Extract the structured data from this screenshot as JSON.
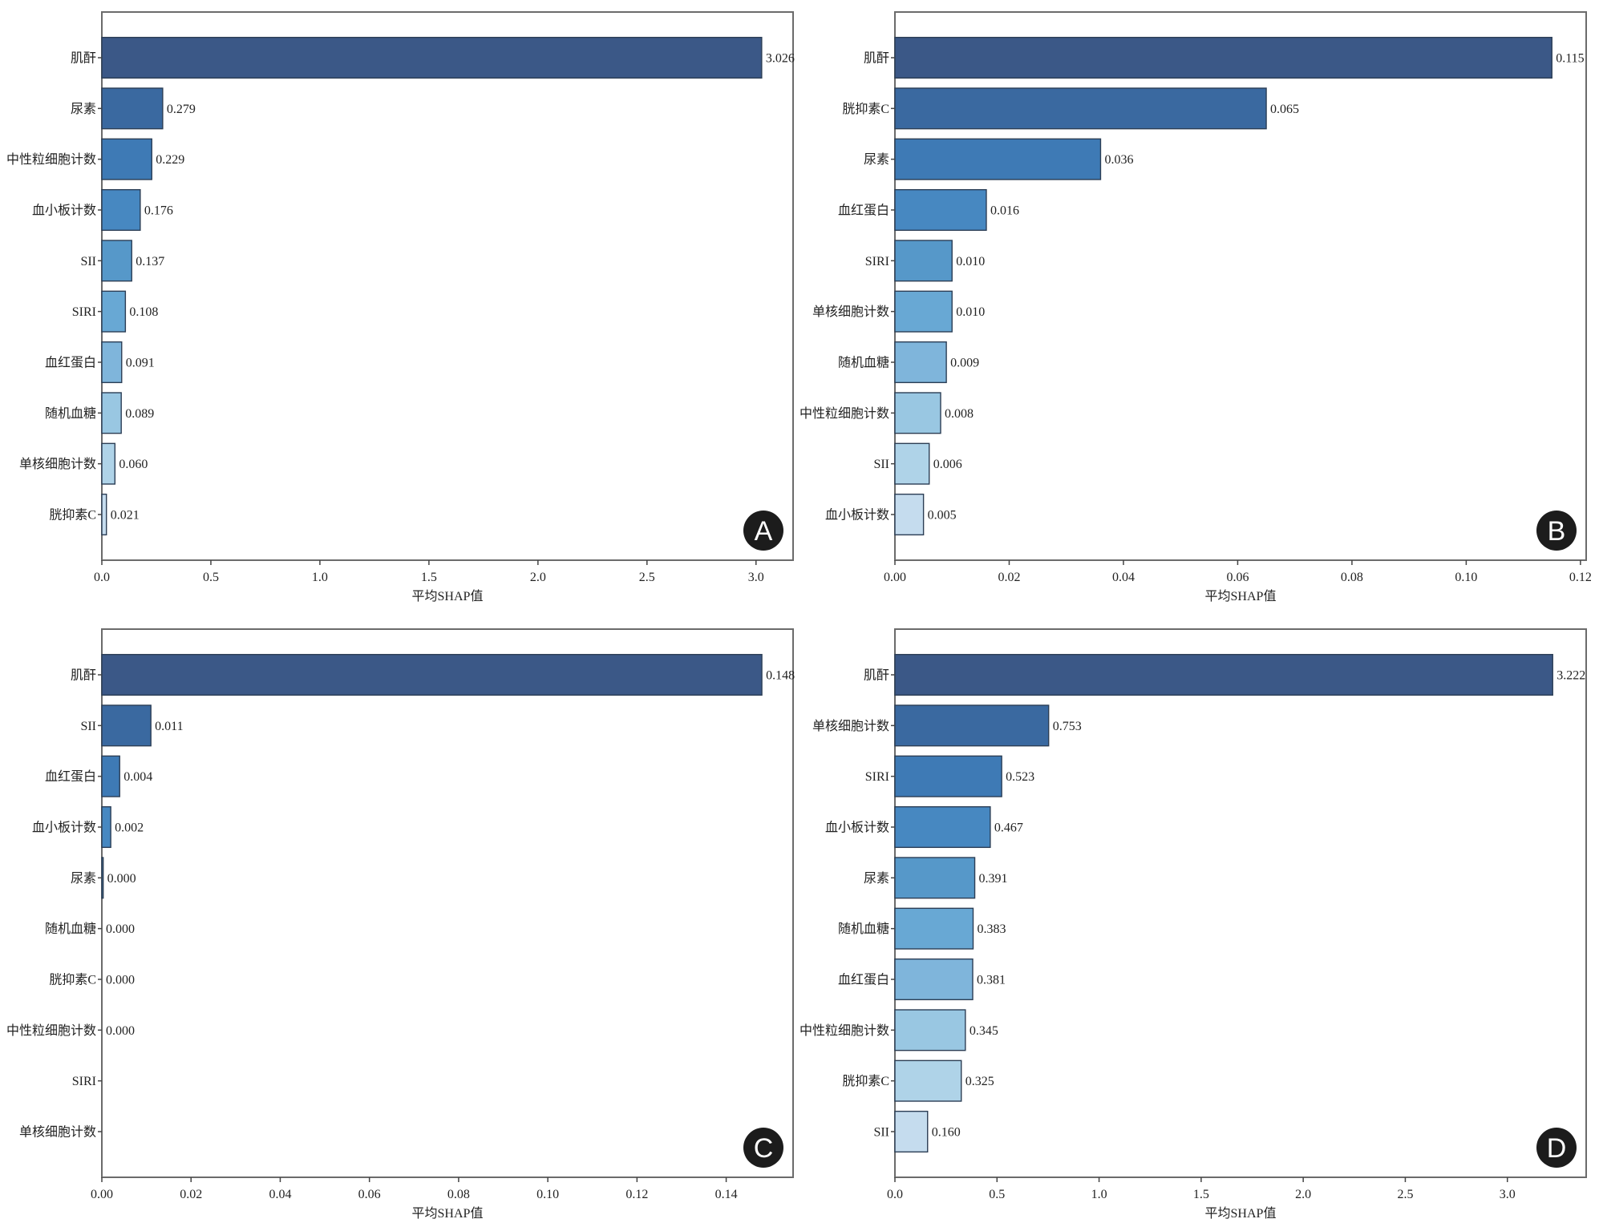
{
  "figure": {
    "panel_count": 4
  },
  "chart_data": [
    {
      "panel": "A",
      "type": "bar",
      "orientation": "horizontal",
      "title": "",
      "xlabel": "平均SHAP值",
      "ylabel": "",
      "xlim": [
        0,
        3.17
      ],
      "xticks": [
        0.0,
        0.5,
        1.0,
        1.5,
        2.0,
        2.5,
        3.0
      ],
      "xtick_labels": [
        "0.0",
        "0.5",
        "1.0",
        "1.5",
        "2.0",
        "2.5",
        "3.0"
      ],
      "grid": false,
      "categories": [
        "肌酐",
        "尿素",
        "中性粒细胞计数",
        "血小板计数",
        "SII",
        "SIRI",
        "血红蛋白",
        "随机血糖",
        "单核细胞计数",
        "胱抑素C"
      ],
      "values": [
        3.026,
        0.279,
        0.229,
        0.176,
        0.137,
        0.108,
        0.091,
        0.089,
        0.06,
        0.021
      ],
      "value_labels": [
        "3.026",
        "0.279",
        "0.229",
        "0.176",
        "0.137",
        "0.108",
        "0.091",
        "0.089",
        "0.060",
        "0.021"
      ],
      "colors": [
        "#3b5887",
        "#3a69a0",
        "#3e7ab5",
        "#4788c1",
        "#5698c9",
        "#68a8d4",
        "#7fb5db",
        "#99c7e2",
        "#afd3e8",
        "#c5dcee"
      ],
      "badge": "A"
    },
    {
      "panel": "B",
      "type": "bar",
      "orientation": "horizontal",
      "title": "",
      "xlabel": "平均SHAP值",
      "ylabel": "",
      "xlim": [
        0,
        0.121
      ],
      "xticks": [
        0.0,
        0.02,
        0.04,
        0.06,
        0.08,
        0.1,
        0.12
      ],
      "xtick_labels": [
        "0.00",
        "0.02",
        "0.04",
        "0.06",
        "0.08",
        "0.10",
        "0.12"
      ],
      "grid": false,
      "categories": [
        "肌酐",
        "胱抑素C",
        "尿素",
        "血红蛋白",
        "SIRI",
        "单核细胞计数",
        "随机血糖",
        "中性粒细胞计数",
        "SII",
        "血小板计数"
      ],
      "values": [
        0.115,
        0.065,
        0.036,
        0.016,
        0.01,
        0.01,
        0.009,
        0.008,
        0.006,
        0.005
      ],
      "value_labels": [
        "0.115",
        "0.065",
        "0.036",
        "0.016",
        "0.010",
        "0.010",
        "0.009",
        "0.008",
        "0.006",
        "0.005"
      ],
      "colors": [
        "#3b5887",
        "#3a69a0",
        "#3e7ab5",
        "#4788c1",
        "#5698c9",
        "#68a8d4",
        "#7fb5db",
        "#99c7e2",
        "#afd3e8",
        "#c5dcee"
      ],
      "badge": "B"
    },
    {
      "panel": "C",
      "type": "bar",
      "orientation": "horizontal",
      "title": "",
      "xlabel": "平均SHAP值",
      "ylabel": "",
      "xlim": [
        0,
        0.155
      ],
      "xticks": [
        0.0,
        0.02,
        0.04,
        0.06,
        0.08,
        0.1,
        0.12,
        0.14
      ],
      "xtick_labels": [
        "0.00",
        "0.02",
        "0.04",
        "0.06",
        "0.08",
        "0.10",
        "0.12",
        "0.14"
      ],
      "grid": false,
      "categories": [
        "肌酐",
        "SII",
        "血红蛋白",
        "血小板计数",
        "尿素",
        "随机血糖",
        "胱抑素C",
        "中性粒细胞计数",
        "SIRI",
        "单核细胞计数"
      ],
      "values": [
        0.148,
        0.011,
        0.004,
        0.002,
        0.0003,
        0.0,
        0.0,
        0.0,
        0.0,
        0.0
      ],
      "value_labels": [
        "0.148",
        "0.011",
        "0.004",
        "0.002",
        "0.000",
        "0.000",
        "0.000",
        "0.000",
        "",
        ""
      ],
      "colors": [
        "#3b5887",
        "#3a69a0",
        "#3e7ab5",
        "#4788c1",
        "#5698c9",
        "#68a8d4",
        "#7fb5db",
        "#99c7e2",
        "#afd3e8",
        "#c5dcee"
      ],
      "badge": "C"
    },
    {
      "panel": "D",
      "type": "bar",
      "orientation": "horizontal",
      "title": "",
      "xlabel": "平均SHAP值",
      "ylabel": "",
      "xlim": [
        0,
        3.386
      ],
      "xticks": [
        0.0,
        0.5,
        1.0,
        1.5,
        2.0,
        2.5,
        3.0
      ],
      "xtick_labels": [
        "0.0",
        "0.5",
        "1.0",
        "1.5",
        "2.0",
        "2.5",
        "3.0"
      ],
      "grid": false,
      "categories": [
        "肌酐",
        "单核细胞计数",
        "SIRI",
        "血小板计数",
        "尿素",
        "随机血糖",
        "血红蛋白",
        "中性粒细胞计数",
        "胱抑素C",
        "SII"
      ],
      "values": [
        3.222,
        0.753,
        0.523,
        0.467,
        0.391,
        0.383,
        0.381,
        0.345,
        0.325,
        0.16
      ],
      "value_labels": [
        "3.222",
        "0.753",
        "0.523",
        "0.467",
        "0.391",
        "0.383",
        "0.381",
        "0.345",
        "0.325",
        "0.160"
      ],
      "colors": [
        "#3b5887",
        "#3a69a0",
        "#3e7ab5",
        "#4788c1",
        "#5698c9",
        "#68a8d4",
        "#7fb5db",
        "#99c7e2",
        "#afd3e8",
        "#c5dcee"
      ],
      "badge": "D"
    }
  ]
}
